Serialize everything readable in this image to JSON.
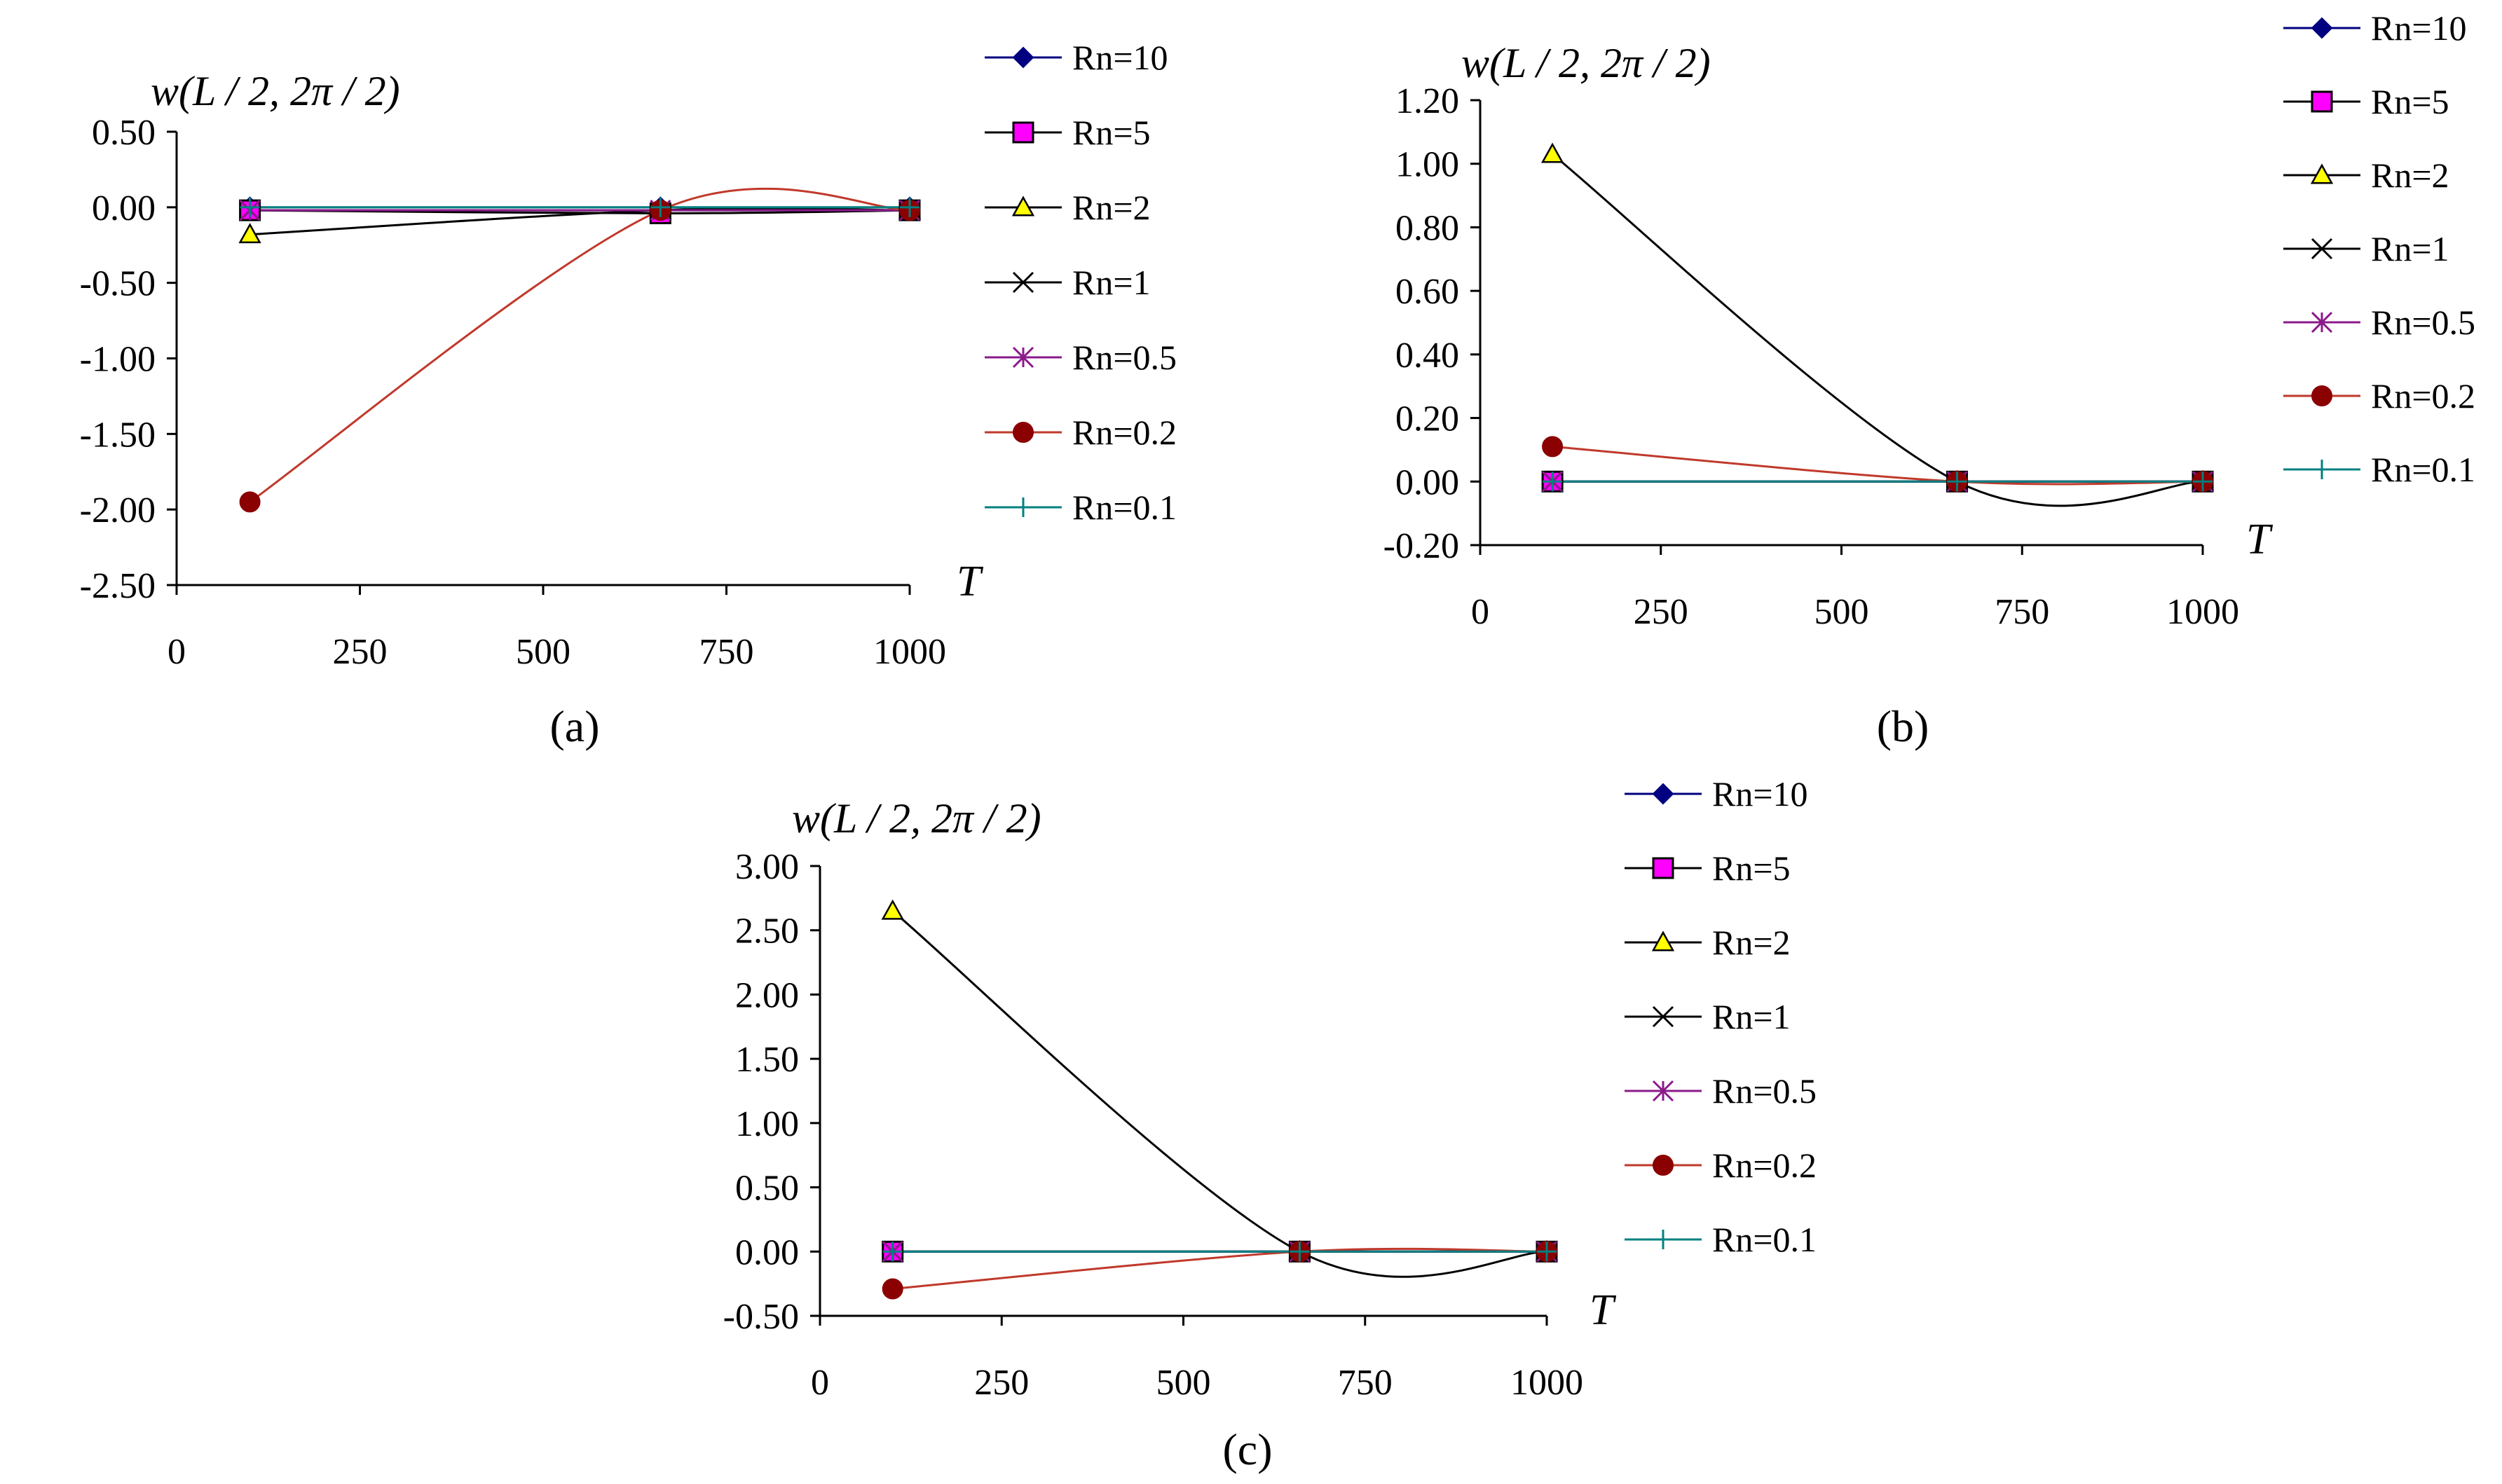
{
  "chart_data": [
    {
      "type": "line",
      "caption": "(a)",
      "ylabel": "w(L / 2, 2π / 2)",
      "xlabel": "T",
      "x": [
        100,
        660,
        1000
      ],
      "xlim": [
        0,
        1000
      ],
      "xticks": [
        "0",
        "250",
        "500",
        "750",
        "1000"
      ],
      "ylim": [
        -2.5,
        0.5
      ],
      "yticks": [
        "0.50",
        "0.00",
        "-0.50",
        "-1.00",
        "-1.50",
        "-2.00",
        "-2.50"
      ],
      "series": [
        {
          "name": "Rn=10",
          "values": [
            0,
            0,
            0
          ]
        },
        {
          "name": "Rn=5",
          "values": [
            -0.02,
            -0.04,
            -0.02
          ]
        },
        {
          "name": "Rn=2",
          "values": [
            -0.18,
            -0.02,
            -0.02
          ]
        },
        {
          "name": "Rn=1",
          "values": [
            -0.02,
            -0.02,
            -0.02
          ]
        },
        {
          "name": "Rn=0.5",
          "values": [
            -0.02,
            -0.02,
            -0.02
          ]
        },
        {
          "name": "Rn=0.2",
          "values": [
            -1.95,
            -0.02,
            -0.02
          ]
        },
        {
          "name": "Rn=0.1",
          "values": [
            0,
            0,
            0
          ]
        }
      ]
    },
    {
      "type": "line",
      "caption": "(b)",
      "ylabel": "w(L / 2, 2π / 2)",
      "xlabel": "T",
      "x": [
        100,
        660,
        1000
      ],
      "xlim": [
        0,
        1000
      ],
      "xticks": [
        "0",
        "250",
        "500",
        "750",
        "1000"
      ],
      "ylim": [
        -0.2,
        1.2
      ],
      "yticks": [
        "1.20",
        "1.00",
        "0.80",
        "0.60",
        "0.40",
        "0.20",
        "0.00",
        "-0.20"
      ],
      "series": [
        {
          "name": "Rn=10",
          "values": [
            0,
            0,
            0
          ]
        },
        {
          "name": "Rn=5",
          "values": [
            0,
            0,
            0
          ]
        },
        {
          "name": "Rn=2",
          "values": [
            1.03,
            0,
            0
          ]
        },
        {
          "name": "Rn=1",
          "values": [
            0,
            0,
            0
          ]
        },
        {
          "name": "Rn=0.5",
          "values": [
            0,
            0,
            0
          ]
        },
        {
          "name": "Rn=0.2",
          "values": [
            0.11,
            0,
            0
          ]
        },
        {
          "name": "Rn=0.1",
          "values": [
            0,
            0,
            0
          ]
        }
      ]
    },
    {
      "type": "line",
      "caption": "(c)",
      "ylabel": "w(L / 2, 2π / 2)",
      "xlabel": "T",
      "x": [
        100,
        660,
        1000
      ],
      "xlim": [
        0,
        1000
      ],
      "xticks": [
        "0",
        "250",
        "500",
        "750",
        "1000"
      ],
      "ylim": [
        -0.5,
        3.0
      ],
      "yticks": [
        "3.00",
        "2.50",
        "2.00",
        "1.50",
        "1.00",
        "0.50",
        "0.00",
        "-0.50"
      ],
      "series": [
        {
          "name": "Rn=10",
          "values": [
            0,
            0,
            0
          ]
        },
        {
          "name": "Rn=5",
          "values": [
            0,
            0,
            0
          ]
        },
        {
          "name": "Rn=2",
          "values": [
            2.65,
            0,
            0
          ]
        },
        {
          "name": "Rn=1",
          "values": [
            0,
            0,
            0
          ]
        },
        {
          "name": "Rn=0.5",
          "values": [
            0,
            0,
            0
          ]
        },
        {
          "name": "Rn=0.2",
          "values": [
            -0.29,
            0,
            0
          ]
        },
        {
          "name": "Rn=0.1",
          "values": [
            0,
            0,
            0
          ]
        }
      ]
    }
  ],
  "legend": [
    {
      "label": "Rn=10",
      "color": "#000080",
      "marker": "diamond",
      "line": "#000080"
    },
    {
      "label": "Rn=5",
      "color": "#ff00ff",
      "marker": "square",
      "line": "#000000"
    },
    {
      "label": "Rn=2",
      "color": "#ffff00",
      "marker": "triangle",
      "line": "#000000"
    },
    {
      "label": "Rn=1",
      "color": "#000000",
      "marker": "x",
      "line": "#000000"
    },
    {
      "label": "Rn=0.5",
      "color": "#8b1a8b",
      "marker": "asterisk",
      "line": "#8b1a8b"
    },
    {
      "label": "Rn=0.2",
      "color": "#8b0000",
      "marker": "circle",
      "line": "#c0392b"
    },
    {
      "label": "Rn=0.1",
      "color": "#008080",
      "marker": "plus",
      "line": "#008080"
    }
  ]
}
